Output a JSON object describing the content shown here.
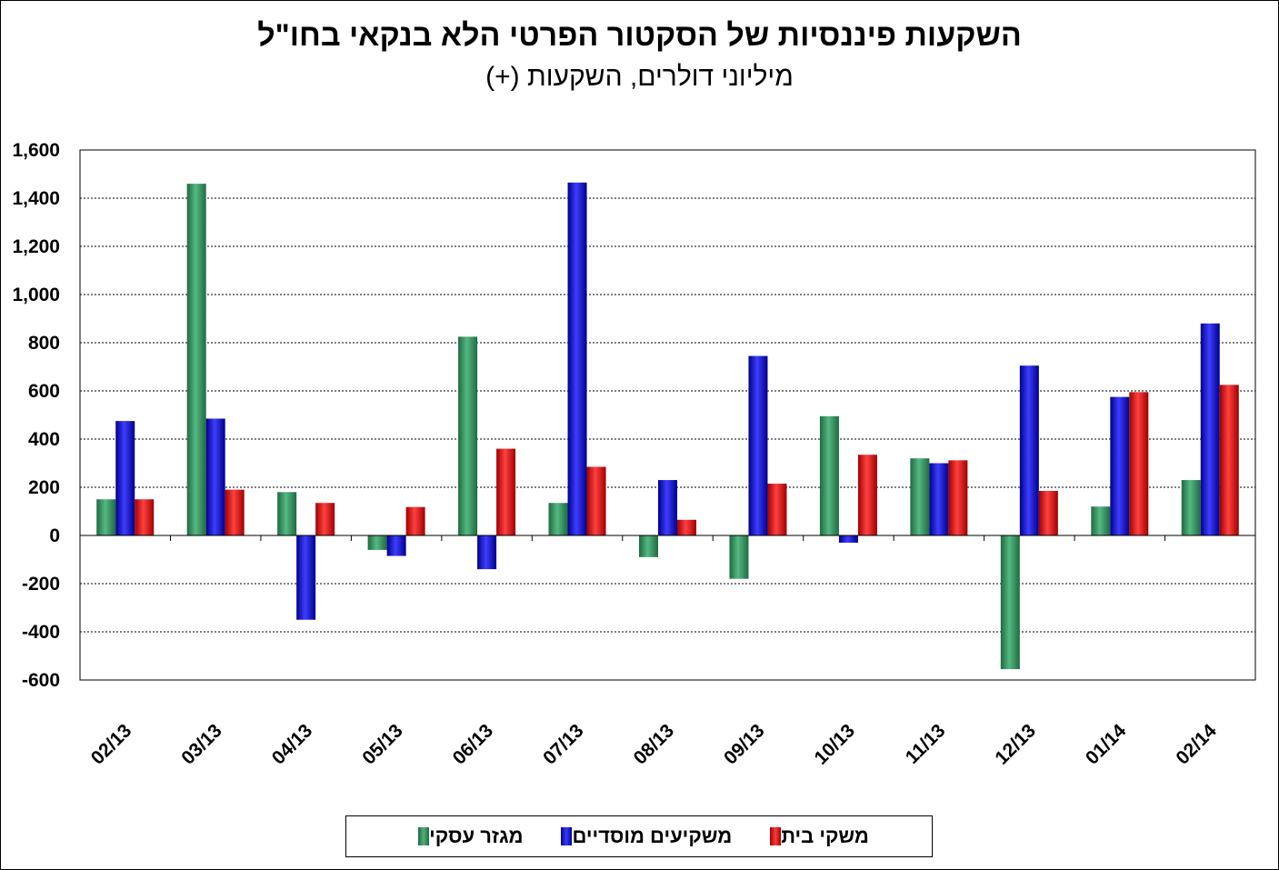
{
  "colors": {
    "business": "#2e8b57",
    "institutional": "#0000cc",
    "households": "#dd0000"
  },
  "chart_data": {
    "type": "bar",
    "title": "השקעות פיננסיות של הסקטור הפרטי הלא בנקאי בחו\"ל",
    "subtitle": "מיליוני דולרים, השקעות (+)",
    "categories": [
      "02/13",
      "03/13",
      "04/13",
      "05/13",
      "06/13",
      "07/13",
      "08/13",
      "09/13",
      "10/13",
      "11/13",
      "12/13",
      "01/14",
      "02/14"
    ],
    "series": [
      {
        "name": "מגזר עסקי",
        "color": "#2e8b57",
        "values": [
          150,
          1460,
          180,
          -60,
          825,
          135,
          -90,
          -180,
          495,
          320,
          -555,
          120,
          230
        ]
      },
      {
        "name": "משקיעים מוסדיים",
        "color": "#0000cc",
        "values": [
          475,
          485,
          -350,
          -85,
          -140,
          1465,
          230,
          745,
          -30,
          300,
          705,
          575,
          880
        ]
      },
      {
        "name": "משקי בית",
        "color": "#dd0000",
        "values": [
          150,
          190,
          135,
          118,
          360,
          285,
          65,
          215,
          335,
          312,
          185,
          595,
          625
        ]
      }
    ],
    "yTicks": [
      "1,600",
      "1,400",
      "1,200",
      "1,000",
      "800",
      "600",
      "400",
      "200",
      "0",
      "-200",
      "-400",
      "-600"
    ],
    "ylim": [
      -600,
      1600
    ],
    "grid": true,
    "legend": "bottom"
  }
}
